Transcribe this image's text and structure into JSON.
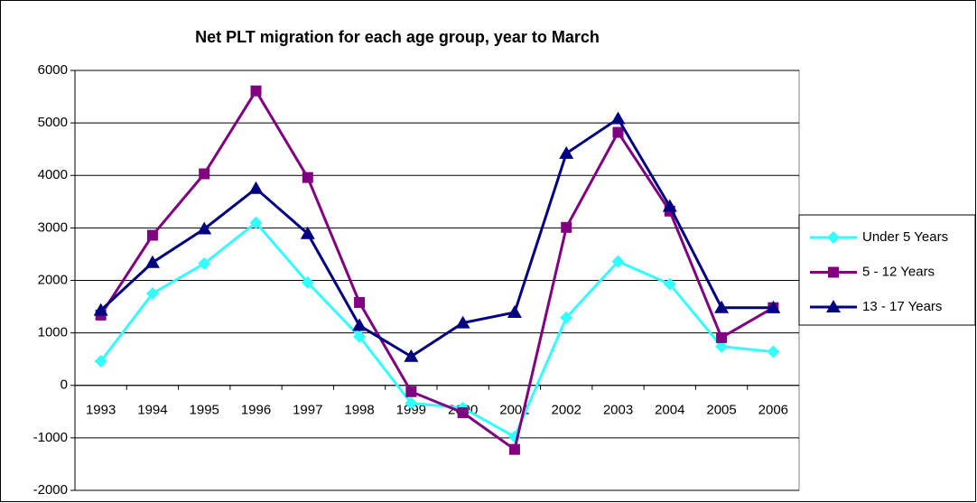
{
  "chart_data": {
    "type": "line",
    "title": "Net PLT migration for each age group, year to March",
    "categories": [
      "1993",
      "1994",
      "1995",
      "1996",
      "1997",
      "1998",
      "1999",
      "2000",
      "2001",
      "2002",
      "2003",
      "2004",
      "2005",
      "2006"
    ],
    "series": [
      {
        "name": "Under 5 Years",
        "color": "#33ffff",
        "marker": "diamond",
        "values": [
          460,
          1750,
          2320,
          3100,
          1960,
          930,
          -340,
          -430,
          -980,
          1290,
          2360,
          1930,
          740,
          640
        ]
      },
      {
        "name": "5 - 12 Years",
        "color": "#800080",
        "marker": "square",
        "values": [
          1340,
          2860,
          4030,
          5610,
          3960,
          1580,
          -120,
          -520,
          -1220,
          3010,
          4820,
          3320,
          910,
          1480
        ]
      },
      {
        "name": "13 - 17 Years",
        "color": "#000080",
        "marker": "triangle",
        "values": [
          1430,
          2340,
          2980,
          3750,
          2890,
          1140,
          550,
          1190,
          1390,
          4420,
          5080,
          3410,
          1480,
          1480
        ]
      }
    ],
    "ylim": [
      -2000,
      6000
    ],
    "yticks": [
      -2000,
      -1000,
      0,
      1000,
      2000,
      3000,
      4000,
      5000,
      6000
    ],
    "grid": true,
    "legend": "right"
  }
}
